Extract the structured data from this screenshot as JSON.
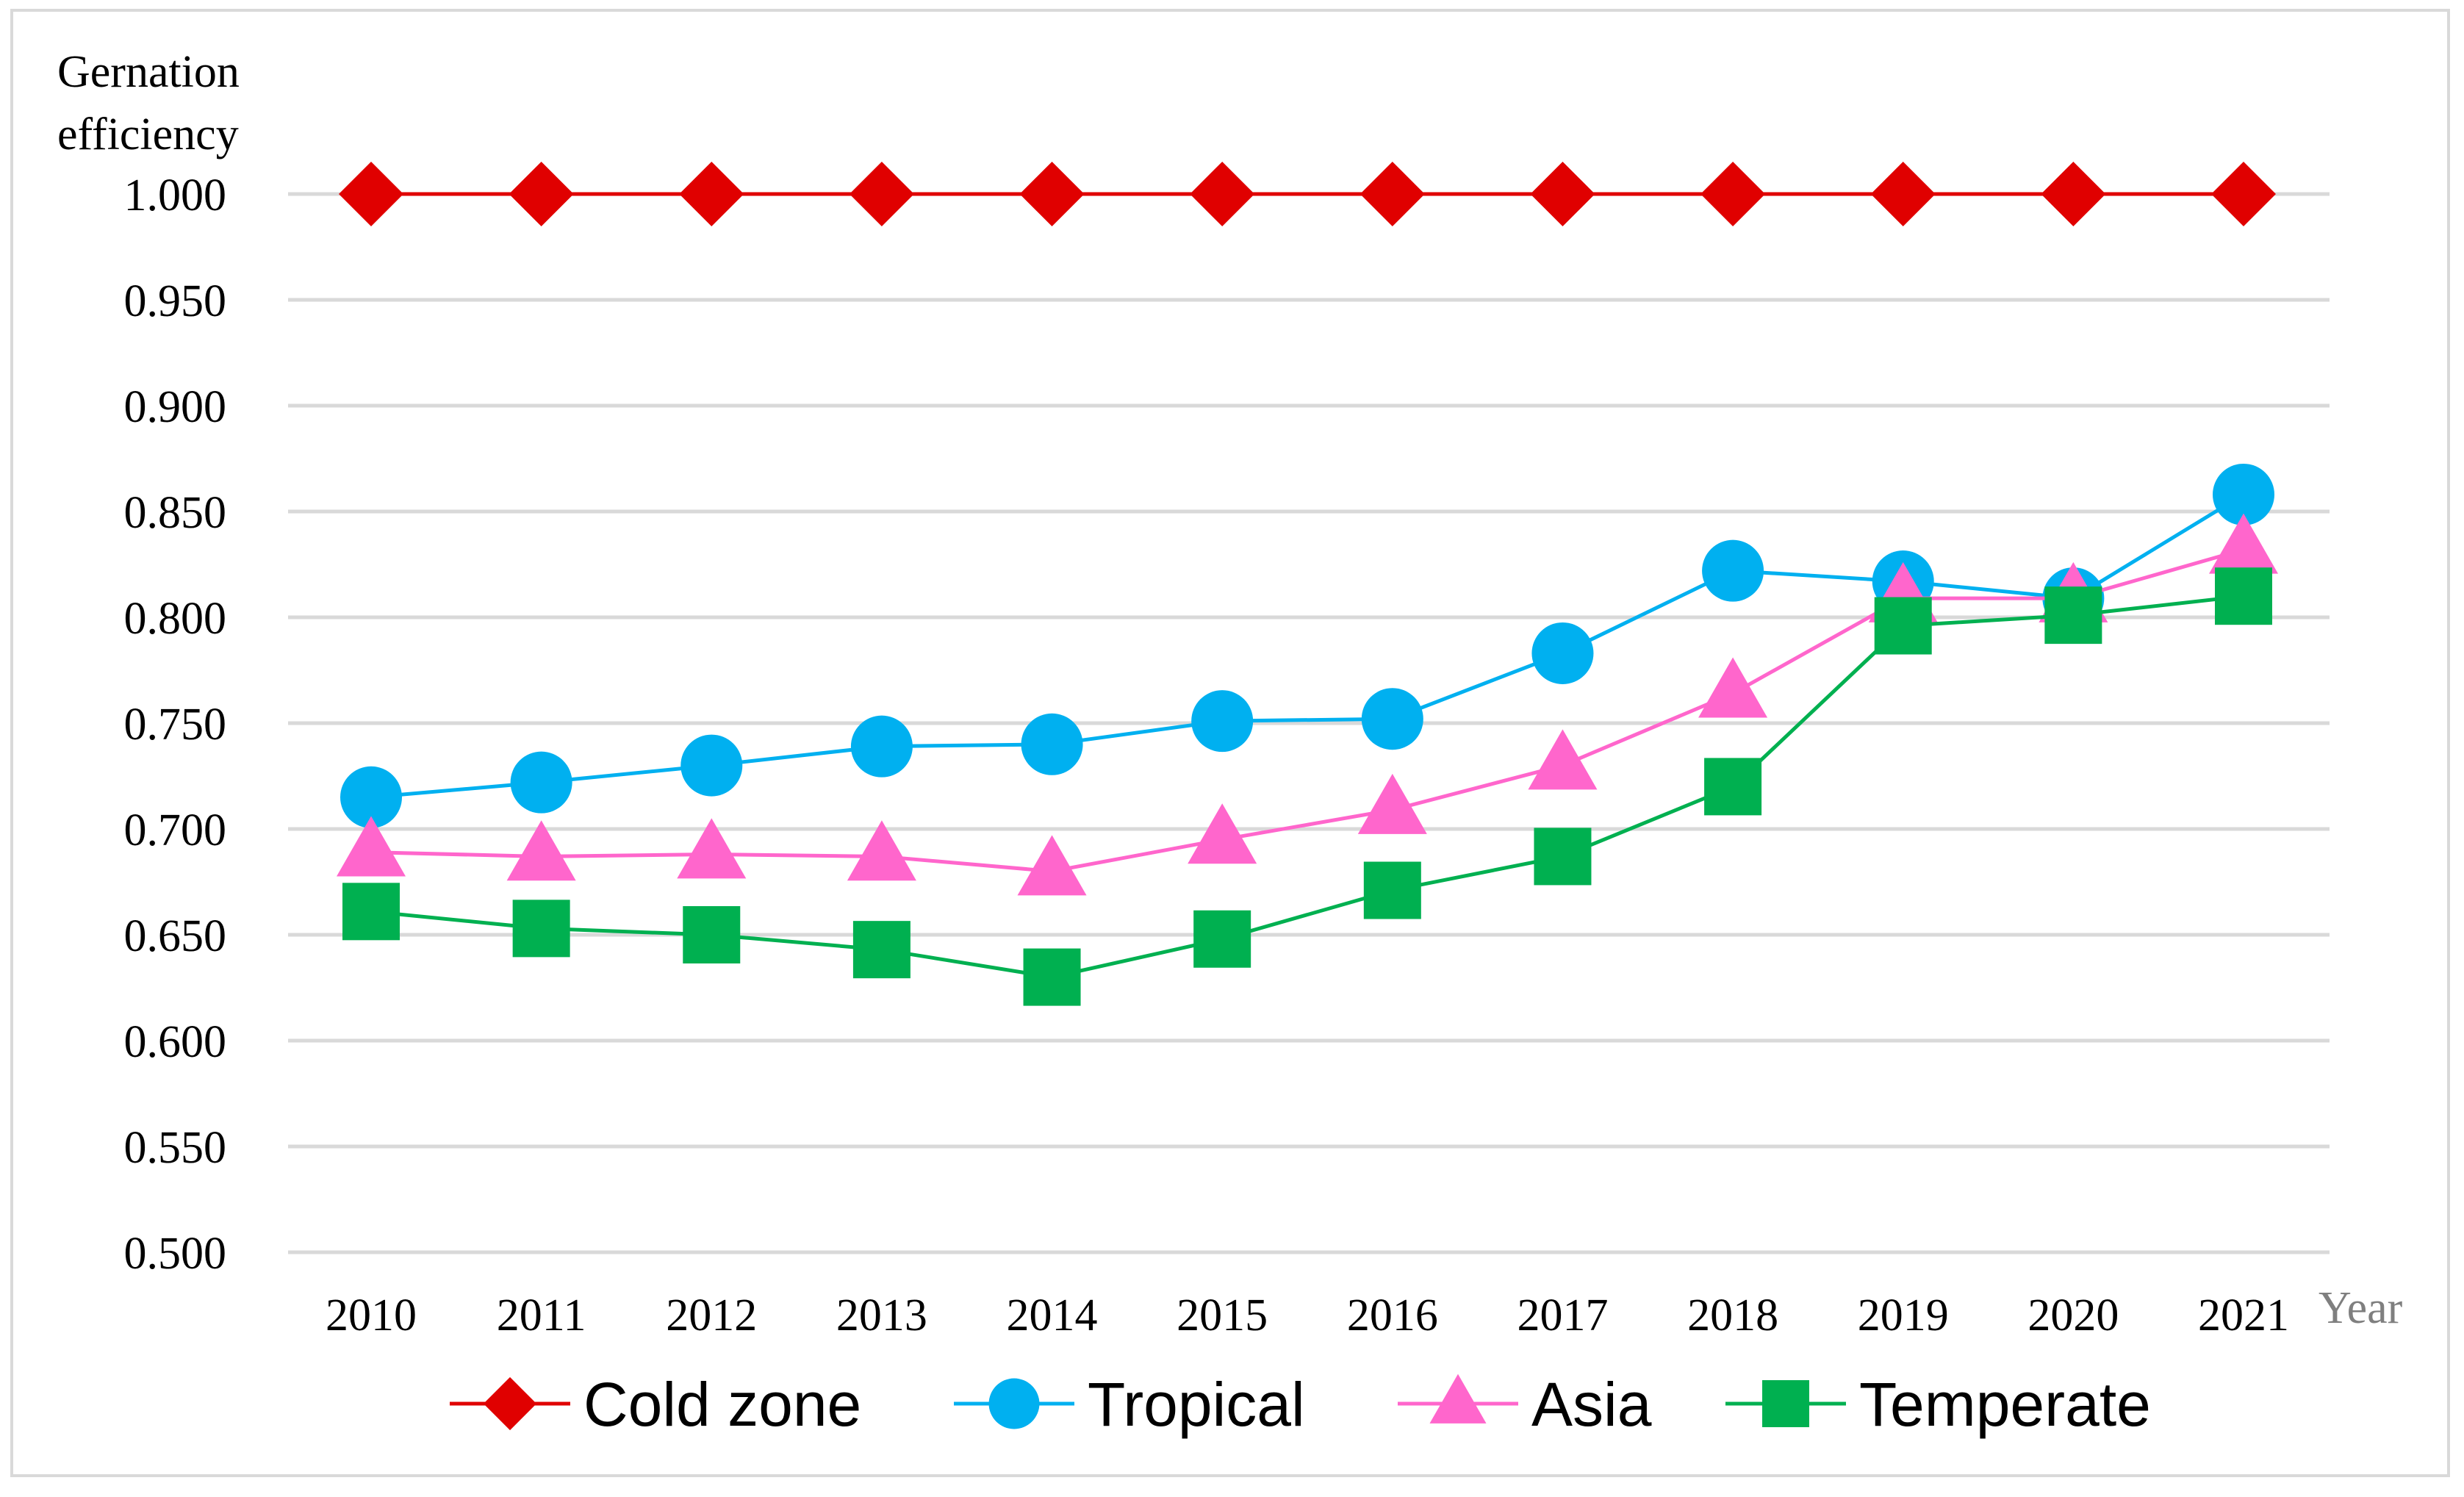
{
  "chart_data": {
    "type": "line",
    "ylabel_lines": [
      "Gernation",
      "efficiency"
    ],
    "xlabel": "Year",
    "categories": [
      "2010",
      "2011",
      "2012",
      "2013",
      "2014",
      "2015",
      "2016",
      "2017",
      "2018",
      "2019",
      "2020",
      "2021"
    ],
    "ylim": [
      0.5,
      1.0
    ],
    "yticks": [
      0.5,
      0.55,
      0.6,
      0.65,
      0.7,
      0.75,
      0.8,
      0.85,
      0.9,
      0.95,
      1.0
    ],
    "ytick_labels": [
      "0.500",
      "0.550",
      "0.600",
      "0.650",
      "0.700",
      "0.750",
      "0.800",
      "0.850",
      "0.900",
      "0.950",
      "1.000"
    ],
    "grid": true,
    "legend_position": "bottom",
    "series": [
      {
        "name": "Cold zone",
        "marker": "diamond",
        "color": "#e00000",
        "values": [
          1.0,
          1.0,
          1.0,
          1.0,
          1.0,
          1.0,
          1.0,
          1.0,
          1.0,
          1.0,
          1.0,
          1.0
        ]
      },
      {
        "name": "Tropical",
        "marker": "circle",
        "color": "#00b0f0",
        "values": [
          0.715,
          0.722,
          0.73,
          0.739,
          0.74,
          0.751,
          0.752,
          0.783,
          0.822,
          0.817,
          0.809,
          0.858
        ]
      },
      {
        "name": "Asia",
        "marker": "triangle",
        "color": "#ff66cc",
        "values": [
          0.689,
          0.687,
          0.688,
          0.687,
          0.68,
          0.695,
          0.709,
          0.73,
          0.764,
          0.809,
          0.809,
          0.832
        ]
      },
      {
        "name": "Temperate",
        "marker": "square",
        "color": "#00b050",
        "values": [
          0.661,
          0.653,
          0.65,
          0.643,
          0.63,
          0.648,
          0.671,
          0.687,
          0.72,
          0.796,
          0.801,
          0.81
        ]
      }
    ]
  }
}
